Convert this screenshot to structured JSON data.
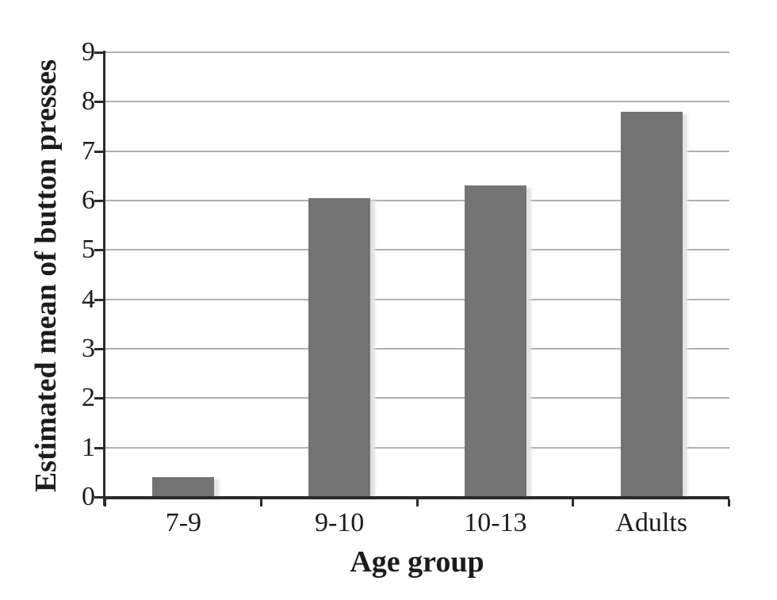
{
  "chart_data": {
    "type": "bar",
    "title": "",
    "categories": [
      "7-9",
      "9-10",
      "10-13",
      "Adults"
    ],
    "values": [
      0.4,
      6.05,
      6.3,
      7.8
    ],
    "xlabel": "Age group",
    "ylabel": "Estimated mean of button presses",
    "ylim": [
      0,
      9
    ],
    "yticks": [
      0,
      1,
      2,
      3,
      4,
      5,
      6,
      7,
      8,
      9
    ],
    "grid": "horizontal",
    "legend": "none",
    "colors": {
      "bar_fill": "#737373",
      "bar_shadow": "#e3e3e3",
      "gridline": "#b0b0b0",
      "axis": "#2b2b2b",
      "text": "#1c1c1c",
      "background": "#ffffff"
    }
  }
}
